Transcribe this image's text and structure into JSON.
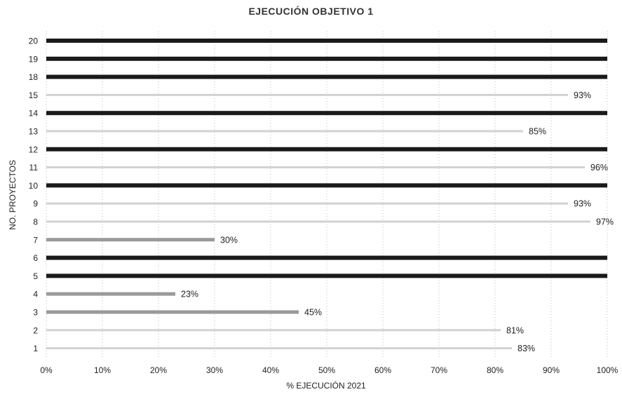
{
  "chart_data": {
    "type": "bar",
    "orientation": "horizontal",
    "title": "EJECUCIÓN OBJETIVO 1",
    "xlabel": "% EJECUCIÓN 2021",
    "ylabel": "NO. PROYECTOS",
    "xlim": [
      0,
      100
    ],
    "xticks": [
      "0%",
      "10%",
      "20%",
      "30%",
      "40%",
      "50%",
      "60%",
      "70%",
      "80%",
      "90%",
      "100%"
    ],
    "grid": true,
    "categories": [
      "1",
      "2",
      "3",
      "4",
      "5",
      "6",
      "7",
      "8",
      "9",
      "10",
      "11",
      "12",
      "13",
      "14",
      "15",
      "18",
      "19",
      "20"
    ],
    "values": [
      83,
      81,
      45,
      23,
      100,
      100,
      30,
      97,
      93,
      100,
      96,
      100,
      85,
      100,
      93,
      100,
      100,
      100
    ],
    "data_labels": [
      "83%",
      "81%",
      "45%",
      "23%",
      "",
      "",
      "30%",
      "97%",
      "93%",
      "",
      "96%",
      "",
      "85%",
      "",
      "93%",
      "",
      "",
      ""
    ],
    "colors": {
      "full": "#1a1a1a",
      "partial_dark": "#9a9a9a",
      "partial_light": "#d2d2d2"
    }
  }
}
